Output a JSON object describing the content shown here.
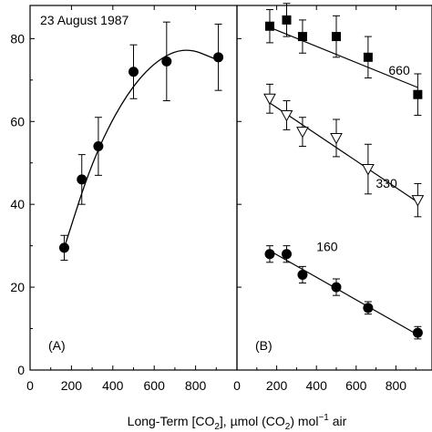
{
  "chart_data": [
    {
      "type": "scatter",
      "panel_label": "(A)",
      "annotation": "23 August 1987",
      "x_ticks": [
        0,
        200,
        400,
        600,
        800
      ],
      "y_ticks": [
        0,
        20,
        40,
        60,
        80
      ],
      "xlim": [
        0,
        1000
      ],
      "ylim": [
        0,
        88
      ],
      "grid": false,
      "fit": "quadratic curve",
      "fit_points": [
        {
          "x": 165,
          "y": 29.5
        },
        {
          "x": 300,
          "y": 50.5
        },
        {
          "x": 450,
          "y": 65.5
        },
        {
          "x": 600,
          "y": 74.5
        },
        {
          "x": 750,
          "y": 78
        },
        {
          "x": 900,
          "y": 75
        }
      ],
      "series": [
        {
          "marker": "filled-circle",
          "points": [
            {
              "x": 165,
              "y": 29.5,
              "err": 3
            },
            {
              "x": 250,
              "y": 46,
              "err": 6
            },
            {
              "x": 330,
              "y": 54,
              "err": 7
            },
            {
              "x": 500,
              "y": 72,
              "err": 6.5
            },
            {
              "x": 660,
              "y": 74.5,
              "err": 9.5
            },
            {
              "x": 910,
              "y": 75.5,
              "err": 8
            }
          ]
        }
      ]
    },
    {
      "type": "scatter",
      "panel_label": "(B)",
      "x_ticks": [
        0,
        200,
        400,
        600,
        800
      ],
      "xlim": [
        0,
        1000
      ],
      "ylim": [
        0,
        88
      ],
      "grid": false,
      "series": [
        {
          "label": "660",
          "marker": "filled-square",
          "points": [
            {
              "x": 165,
              "y": 83,
              "err": 4
            },
            {
              "x": 250,
              "y": 84.5,
              "err": 4
            },
            {
              "x": 330,
              "y": 80.5,
              "err": 4
            },
            {
              "x": 500,
              "y": 80.5,
              "err": 5
            },
            {
              "x": 660,
              "y": 75.5,
              "err": 5
            },
            {
              "x": 910,
              "y": 66.5,
              "err": 5
            }
          ],
          "fit_line": [
            {
              "x": 165,
              "y": 82.7
            },
            {
              "x": 910,
              "y": 68.2
            }
          ]
        },
        {
          "label": "330",
          "marker": "open-triangle-down",
          "points": [
            {
              "x": 165,
              "y": 65.5,
              "err": 3.5
            },
            {
              "x": 250,
              "y": 61.5,
              "err": 3.5
            },
            {
              "x": 330,
              "y": 57.5,
              "err": 3.5
            },
            {
              "x": 500,
              "y": 56,
              "err": 4.5
            },
            {
              "x": 660,
              "y": 48.5,
              "err": 6
            },
            {
              "x": 910,
              "y": 41,
              "err": 4
            }
          ],
          "fit_line": [
            {
              "x": 165,
              "y": 64.5
            },
            {
              "x": 910,
              "y": 40.5
            }
          ]
        },
        {
          "label": "160",
          "marker": "filled-circle",
          "points": [
            {
              "x": 165,
              "y": 28,
              "err": 2
            },
            {
              "x": 250,
              "y": 28,
              "err": 2
            },
            {
              "x": 330,
              "y": 23,
              "err": 2
            },
            {
              "x": 500,
              "y": 20,
              "err": 2
            },
            {
              "x": 660,
              "y": 15,
              "err": 1.5
            },
            {
              "x": 910,
              "y": 9,
              "err": 1.5
            }
          ],
          "fit_line": [
            {
              "x": 165,
              "y": 28.8
            },
            {
              "x": 910,
              "y": 8.5
            }
          ]
        }
      ]
    }
  ],
  "x_axis_label": {
    "prefix": "Long-Term [CO",
    "sub1": "2",
    "middle": "], µmol (CO",
    "sub2": "2",
    "after": ") mol",
    "sup": "−1",
    "suffix": " air"
  }
}
